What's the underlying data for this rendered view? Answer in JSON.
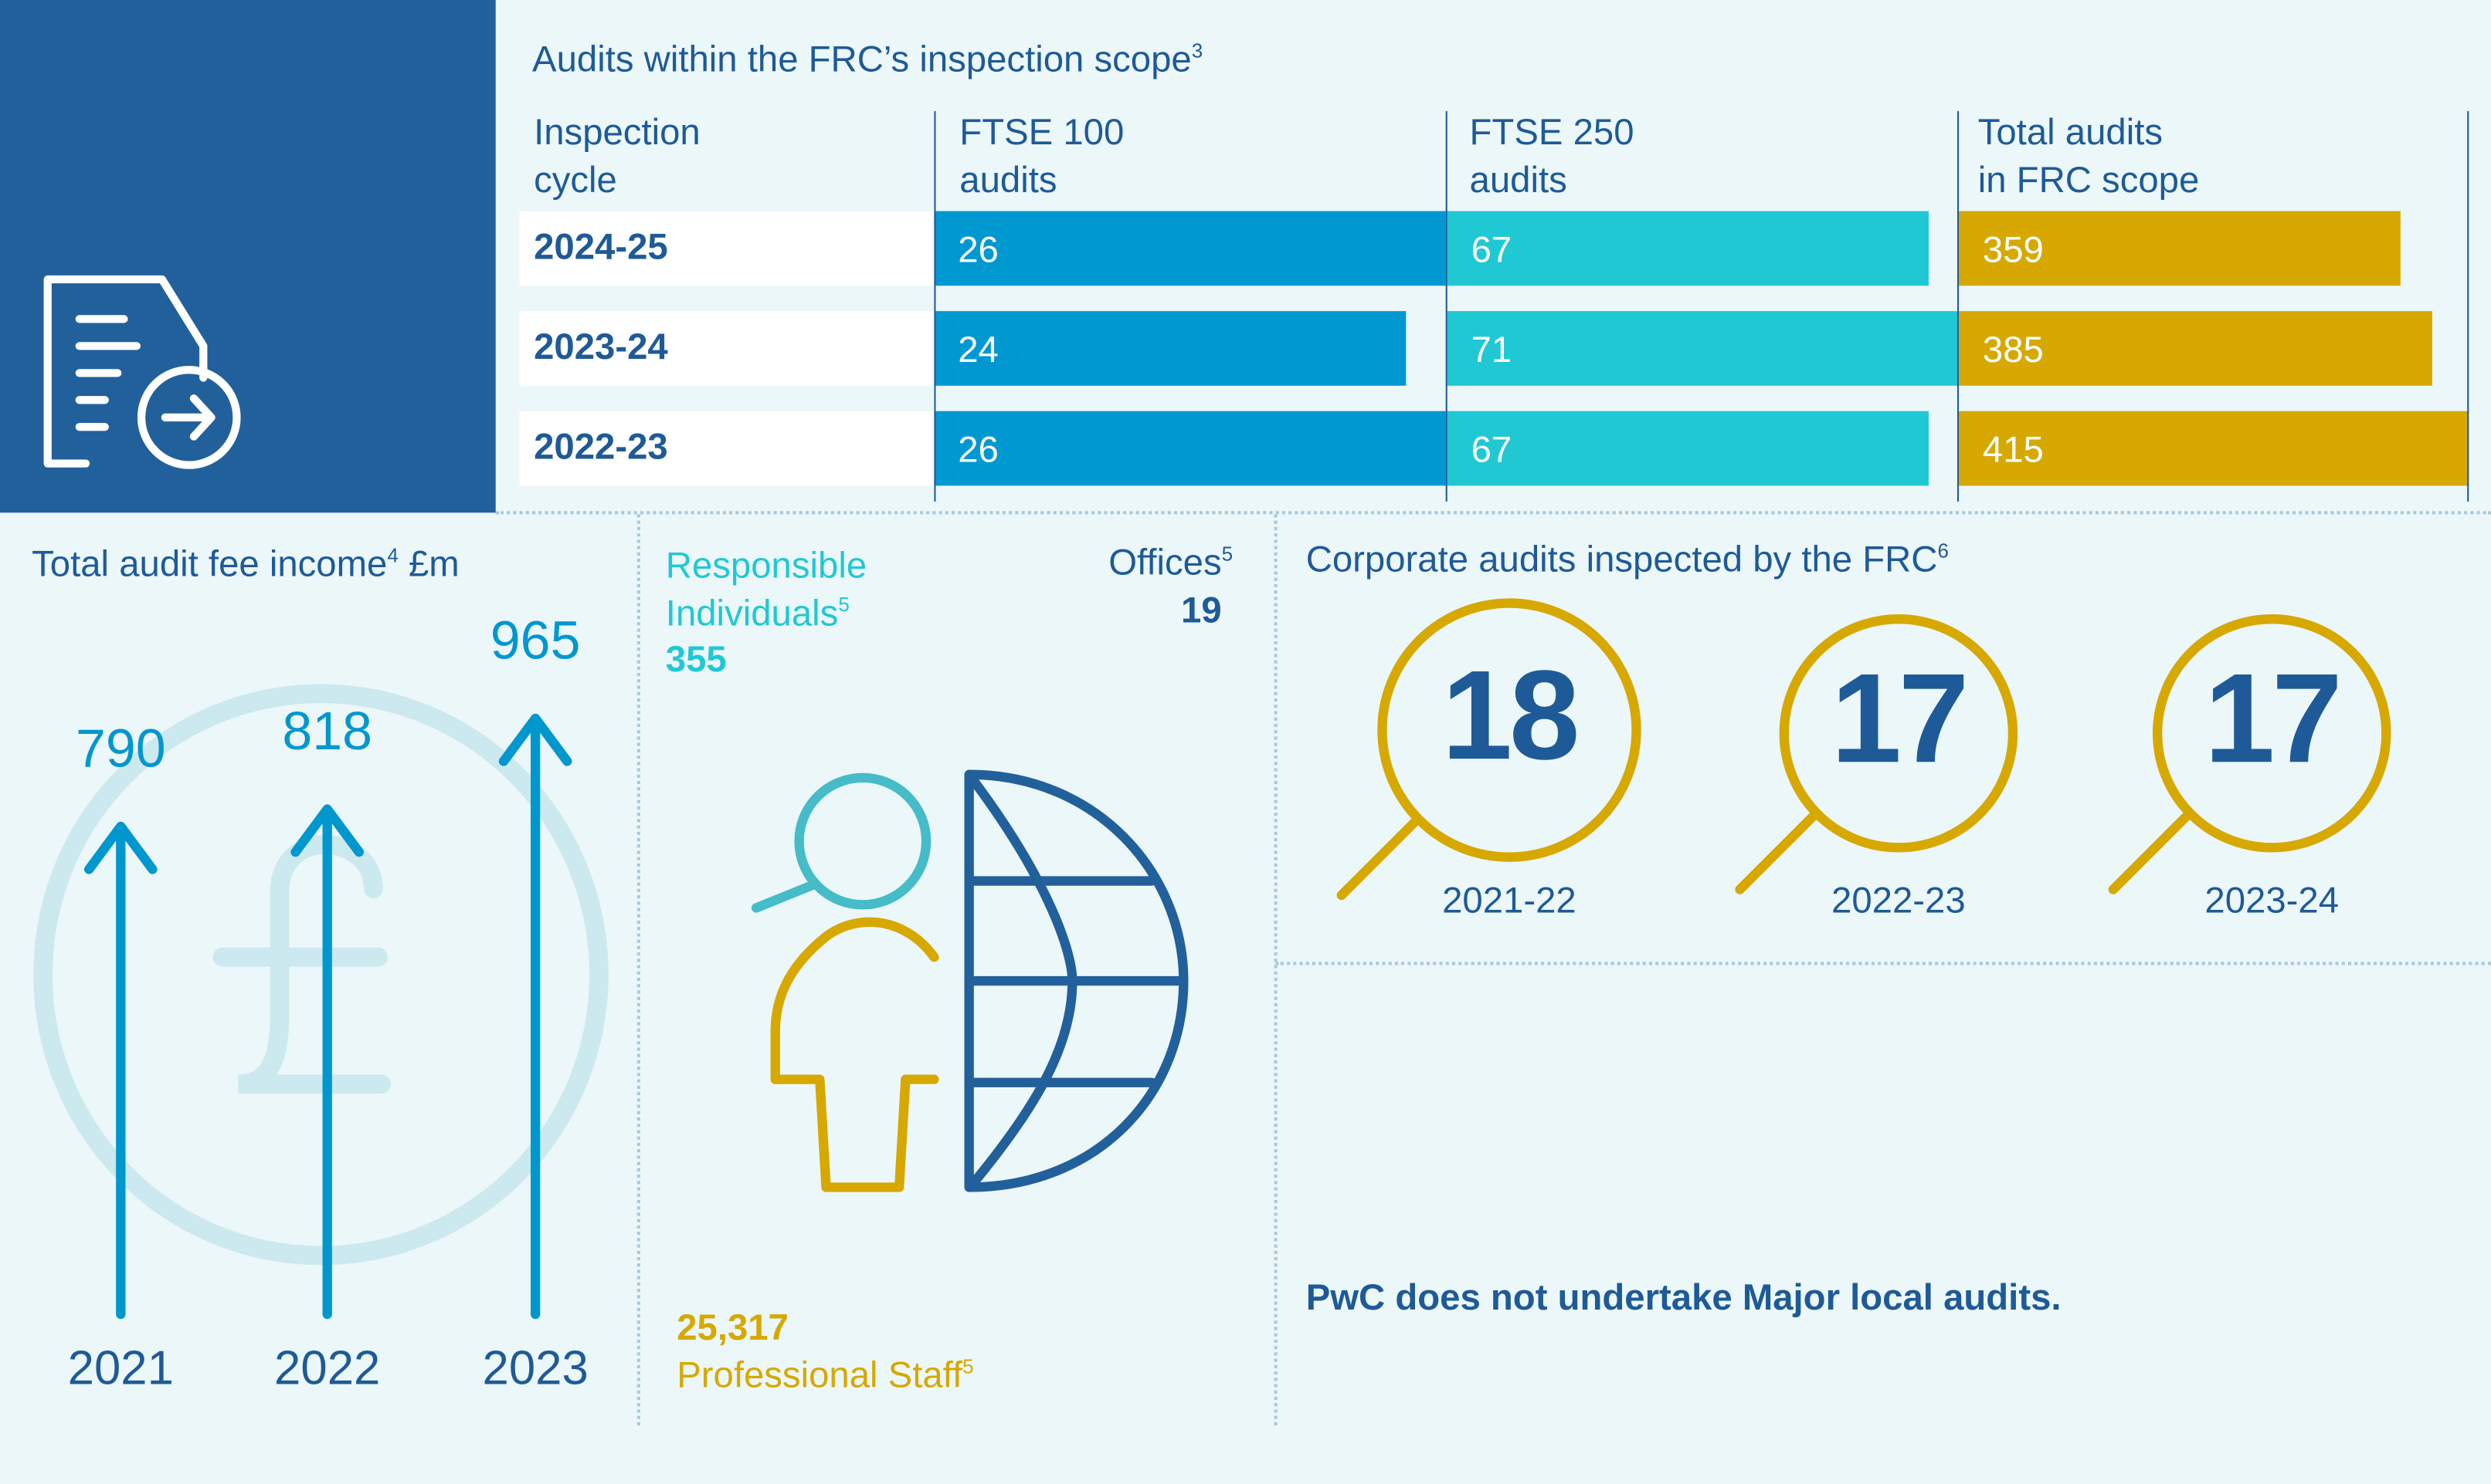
{
  "colors": {
    "navy": "#22609c",
    "text": "#1e5a98",
    "ftse100": "#0098d0",
    "ftse250": "#20c8d4",
    "total": "#d6a800",
    "background": "#ecf7f9",
    "pound": "#cbe9ee",
    "arrow": "#0097cf",
    "magnifier": "#45bcc8"
  },
  "scope": {
    "title": "Audits within the FRC’s inspection scope",
    "title_sup": "3",
    "headers": [
      "Inspection\ncycle",
      "FTSE 100\naudits",
      "FTSE 250\naudits",
      "Total audits\nin FRC scope"
    ],
    "rows": [
      {
        "cycle": "2024-25",
        "ftse100": 26,
        "ftse250": 67,
        "total": 359
      },
      {
        "cycle": "2023-24",
        "ftse100": 24,
        "ftse250": 71,
        "total": 385
      },
      {
        "cycle": "2022-23",
        "ftse100": 26,
        "ftse250": 67,
        "total": 415
      }
    ]
  },
  "fees": {
    "title": "Total audit fee income",
    "title_sup": "4",
    "unit": "£m",
    "items": [
      {
        "year": "2021",
        "value": 790
      },
      {
        "year": "2022",
        "value": 818
      },
      {
        "year": "2023",
        "value": 965
      }
    ]
  },
  "people": {
    "ri_label_1": "Responsible",
    "ri_label_2": "Individuals",
    "ri_sup": "5",
    "ri_value": "355",
    "offices_label": "Offices",
    "offices_sup": "5",
    "offices_value": "19",
    "staff_value": "25,317",
    "staff_label": "Professional Staff",
    "staff_sup": "5"
  },
  "inspected": {
    "title": "Corporate audits inspected by the FRC",
    "title_sup": "6",
    "items": [
      {
        "value": "18",
        "year": "2021-22"
      },
      {
        "value": "17",
        "year": "2022-23"
      },
      {
        "value": "17",
        "year": "2023-24"
      }
    ]
  },
  "note": "PwC does not undertake Major local audits."
}
